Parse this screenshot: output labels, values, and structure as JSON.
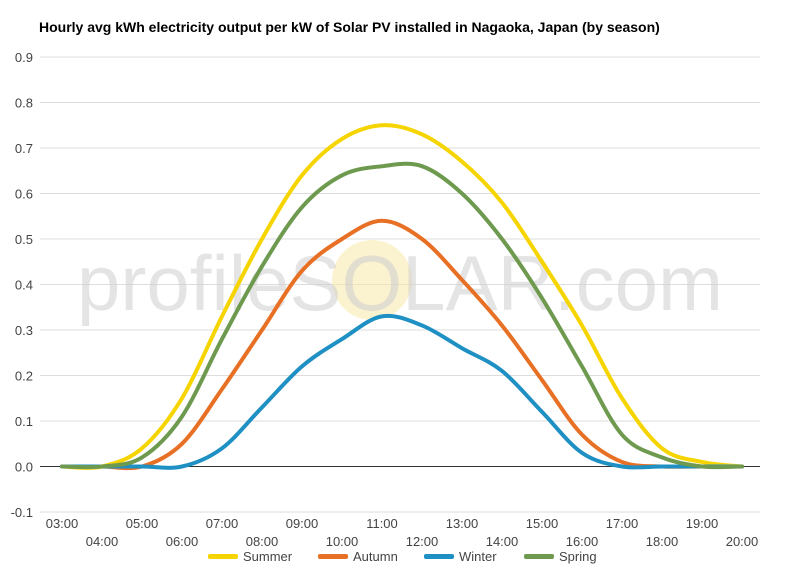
{
  "chart_data": {
    "type": "line",
    "title": "Hourly avg kWh electricity output per kW of Solar PV installed in Nagaoka, Japan (by season)",
    "xlabel": "",
    "ylabel": "",
    "ylim": [
      -0.1,
      0.9
    ],
    "yticks": [
      "0.9",
      "0.8",
      "0.7",
      "0.6",
      "0.5",
      "0.4",
      "0.3",
      "0.2",
      "0.1",
      "0.0",
      "-0.1"
    ],
    "x": [
      "03:00",
      "04:00",
      "05:00",
      "06:00",
      "07:00",
      "08:00",
      "09:00",
      "10:00",
      "11:00",
      "12:00",
      "13:00",
      "14:00",
      "15:00",
      "16:00",
      "17:00",
      "18:00",
      "19:00",
      "20:00"
    ],
    "grid": true,
    "legend_position": "bottom",
    "watermark": "profileSOLAR.com",
    "series": [
      {
        "name": "Summer",
        "color": "#f5d400",
        "values": [
          0.0,
          0.0,
          0.04,
          0.15,
          0.33,
          0.5,
          0.64,
          0.72,
          0.75,
          0.73,
          0.67,
          0.58,
          0.45,
          0.31,
          0.15,
          0.04,
          0.01,
          0.0
        ]
      },
      {
        "name": "Autumn",
        "color": "#e87025",
        "values": [
          0.0,
          0.0,
          0.0,
          0.05,
          0.17,
          0.3,
          0.43,
          0.5,
          0.54,
          0.5,
          0.41,
          0.31,
          0.19,
          0.07,
          0.01,
          0.0,
          0.0,
          0.0
        ]
      },
      {
        "name": "Winter",
        "color": "#1f90c3",
        "values": [
          0.0,
          0.0,
          0.0,
          0.0,
          0.04,
          0.13,
          0.22,
          0.28,
          0.33,
          0.31,
          0.26,
          0.21,
          0.12,
          0.03,
          0.0,
          0.0,
          0.0,
          0.0
        ]
      },
      {
        "name": "Spring",
        "color": "#6e9a4f",
        "values": [
          0.0,
          0.0,
          0.02,
          0.11,
          0.28,
          0.44,
          0.57,
          0.64,
          0.66,
          0.66,
          0.6,
          0.5,
          0.37,
          0.22,
          0.07,
          0.02,
          0.0,
          0.0
        ]
      }
    ]
  }
}
